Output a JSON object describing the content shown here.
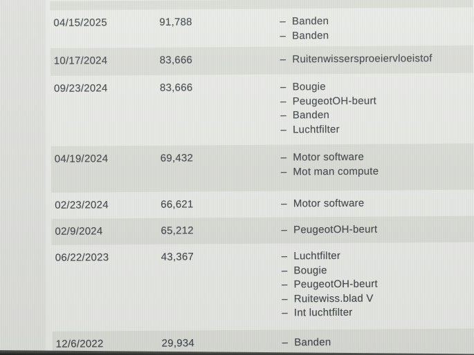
{
  "screen": {
    "item_bullet": "–",
    "colors": {
      "row_band": "#d9dbd5",
      "row_plain": "#e8eae5",
      "text": "#3b3f43",
      "bottom_edge": "#1d1f1d"
    },
    "rows": [
      {
        "date": "04/15/2025",
        "mileage": "91,788",
        "services": [
          "Banden",
          "Banden"
        ]
      },
      {
        "date": "10/17/2024",
        "mileage": "83,666",
        "services": [
          "Ruitenwissersproeiervloeistof"
        ]
      },
      {
        "date": "09/23/2024",
        "mileage": "83,666",
        "services": [
          "Bougie",
          "PeugeotOH-beurt",
          "Banden",
          "Luchtfilter"
        ]
      },
      {
        "date": "04/19/2024",
        "mileage": "69,432",
        "services": [
          "Motor software",
          "Mot man compute"
        ]
      },
      {
        "date": "02/23/2024",
        "mileage": "66,621",
        "services": [
          "Motor software"
        ]
      },
      {
        "date": "02/9/2024",
        "mileage": "65,212",
        "services": [
          "PeugeotOH-beurt"
        ]
      },
      {
        "date": "06/22/2023",
        "mileage": "43,367",
        "services": [
          "Luchtfilter",
          "Bougie",
          "PeugeotOH-beurt",
          "Ruitewiss.blad V",
          "Int luchtfilter"
        ]
      },
      {
        "date": "12/6/2022",
        "mileage": "29,934",
        "services": [
          "Banden"
        ]
      }
    ]
  }
}
